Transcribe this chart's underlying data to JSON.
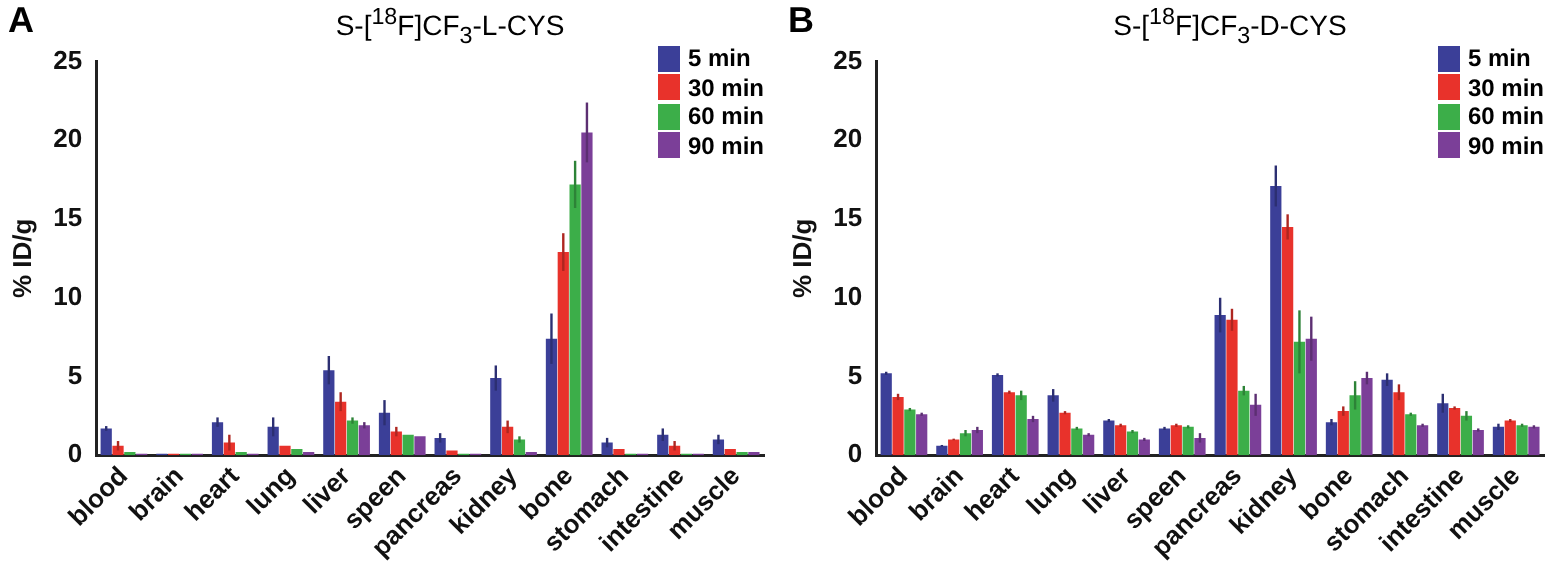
{
  "chart_data": [
    {
      "type": "bar",
      "title": "S-[$^{18}$F]CF$_{3}$-L-CYS",
      "annotations": [
        "A"
      ],
      "ylabel": "% ID/g",
      "legend": "top right",
      "categories": [
        "blood",
        "brain",
        "heart",
        "lung",
        "liver",
        "speen",
        "pancreas",
        "kidney",
        "bone",
        "stomach",
        "intestine",
        "muscle"
      ],
      "ylim": [
        0,
        25
      ],
      "yticks": [
        0,
        5,
        10,
        15,
        20,
        25
      ],
      "series": [
        {
          "name": "5 min",
          "color": "#3b3f98",
          "values": [
            1.7,
            0.1,
            2.1,
            1.8,
            5.4,
            2.7,
            1.1,
            4.9,
            7.4,
            0.8,
            1.3,
            1.0
          ],
          "errors": [
            0.15,
            null,
            0.3,
            0.6,
            0.9,
            0.8,
            0.3,
            0.8,
            1.6,
            0.3,
            0.4,
            0.3
          ]
        },
        {
          "name": "30 min",
          "color": "#e8322b",
          "values": [
            0.6,
            0.1,
            0.8,
            0.6,
            3.4,
            1.5,
            0.3,
            1.8,
            12.9,
            0.4,
            0.6,
            0.4
          ],
          "errors": [
            0.3,
            null,
            0.5,
            null,
            0.6,
            0.3,
            null,
            0.4,
            1.2,
            null,
            0.3,
            null
          ]
        },
        {
          "name": "60 min",
          "color": "#3cae49",
          "values": [
            0.2,
            0.1,
            0.2,
            0.4,
            2.2,
            1.3,
            0.1,
            1.0,
            17.2,
            0.1,
            0.1,
            0.2
          ],
          "errors": [
            null,
            null,
            null,
            null,
            0.2,
            null,
            null,
            0.2,
            1.5,
            null,
            null,
            null
          ]
        },
        {
          "name": "90 min",
          "color": "#7b3f98",
          "values": [
            0.1,
            0.1,
            0.1,
            0.2,
            1.9,
            1.2,
            0.1,
            0.2,
            20.5,
            0.1,
            0.1,
            0.2
          ],
          "errors": [
            null,
            null,
            null,
            null,
            0.2,
            null,
            null,
            null,
            1.9,
            null,
            null,
            null
          ]
        }
      ]
    },
    {
      "type": "bar",
      "title": "S-[$^{18}$F]CF$_{3}$-D-CYS",
      "annotations": [
        "B"
      ],
      "ylabel": "% ID/g",
      "legend": "top right",
      "categories": [
        "blood",
        "brain",
        "heart",
        "lung",
        "liver",
        "speen",
        "pancreas",
        "kidney",
        "bone",
        "stomach",
        "intestine",
        "muscle"
      ],
      "ylim": [
        0,
        25
      ],
      "yticks": [
        0,
        5,
        10,
        15,
        20,
        25
      ],
      "series": [
        {
          "name": "5 min",
          "color": "#3b3f98",
          "values": [
            5.2,
            0.6,
            5.1,
            3.8,
            2.2,
            1.7,
            8.9,
            17.1,
            2.1,
            4.8,
            3.3,
            1.8
          ],
          "errors": [
            0.1,
            0.05,
            0.1,
            0.4,
            0.1,
            0.1,
            1.1,
            1.3,
            0.2,
            0.4,
            0.6,
            0.2
          ]
        },
        {
          "name": "30 min",
          "color": "#e8322b",
          "values": [
            3.7,
            1.0,
            4.0,
            2.7,
            1.9,
            1.9,
            8.6,
            14.5,
            2.8,
            4.0,
            3.0,
            2.2
          ],
          "errors": [
            0.2,
            0.05,
            0.1,
            0.1,
            0.1,
            0.1,
            0.7,
            0.8,
            0.3,
            0.5,
            0.1,
            0.1
          ]
        },
        {
          "name": "60 min",
          "color": "#3cae49",
          "values": [
            2.9,
            1.4,
            3.8,
            1.7,
            1.5,
            1.8,
            4.1,
            7.2,
            3.8,
            2.6,
            2.5,
            1.9
          ],
          "errors": [
            0.1,
            0.2,
            0.3,
            0.1,
            0.1,
            0.1,
            0.3,
            2.0,
            0.9,
            0.1,
            0.3,
            0.1
          ]
        },
        {
          "name": "90 min",
          "color": "#7b3f98",
          "values": [
            2.6,
            1.6,
            2.3,
            1.3,
            1.0,
            1.1,
            3.2,
            7.4,
            4.9,
            1.9,
            1.6,
            1.8
          ],
          "errors": [
            0.1,
            0.2,
            0.2,
            0.1,
            0.1,
            0.3,
            0.7,
            1.4,
            0.4,
            0.1,
            0.1,
            0.1
          ]
        }
      ]
    }
  ]
}
